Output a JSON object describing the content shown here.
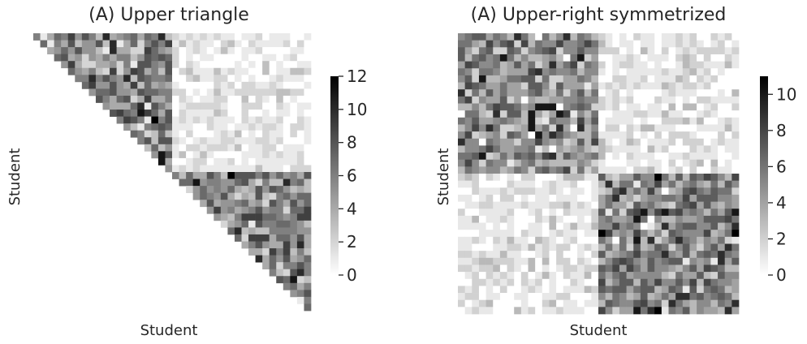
{
  "charts": {
    "left": {
      "title": "(A) Upper triangle",
      "xlabel": "Student",
      "ylabel": "Student",
      "colorbar": {
        "min": 0,
        "max": 12,
        "ticks": [
          "0",
          "2",
          "4",
          "6",
          "8",
          "10",
          "12"
        ]
      }
    },
    "right": {
      "title": "(A) Upper-right symmetrized",
      "xlabel": "Student",
      "ylabel": "Student",
      "colorbar": {
        "min": 0,
        "max": 11,
        "ticks": [
          "0",
          "2",
          "4",
          "6",
          "8",
          "10"
        ]
      }
    }
  },
  "chart_data": [
    {
      "type": "heatmap",
      "title": "(A) Upper triangle",
      "xlabel": "Student",
      "ylabel": "Student",
      "n_students": 40,
      "mask": "upper-triangle",
      "groups": [
        20,
        20
      ],
      "within_group_mean": 5.5,
      "between_group_mean": 1.0,
      "value_range": [
        0,
        12
      ],
      "colormap": "greys",
      "colorbar_ticks": [
        0,
        2,
        4,
        6,
        8,
        10,
        12
      ]
    },
    {
      "type": "heatmap",
      "title": "(A) Upper-right symmetrized",
      "xlabel": "Student",
      "ylabel": "Student",
      "n_students": 40,
      "mask": "none",
      "symmetric": true,
      "groups": [
        20,
        20
      ],
      "within_group_mean": 5.0,
      "between_group_mean": 1.0,
      "value_range": [
        0,
        11
      ],
      "colormap": "greys",
      "colorbar_ticks": [
        0,
        2,
        4,
        6,
        8,
        10
      ]
    }
  ]
}
